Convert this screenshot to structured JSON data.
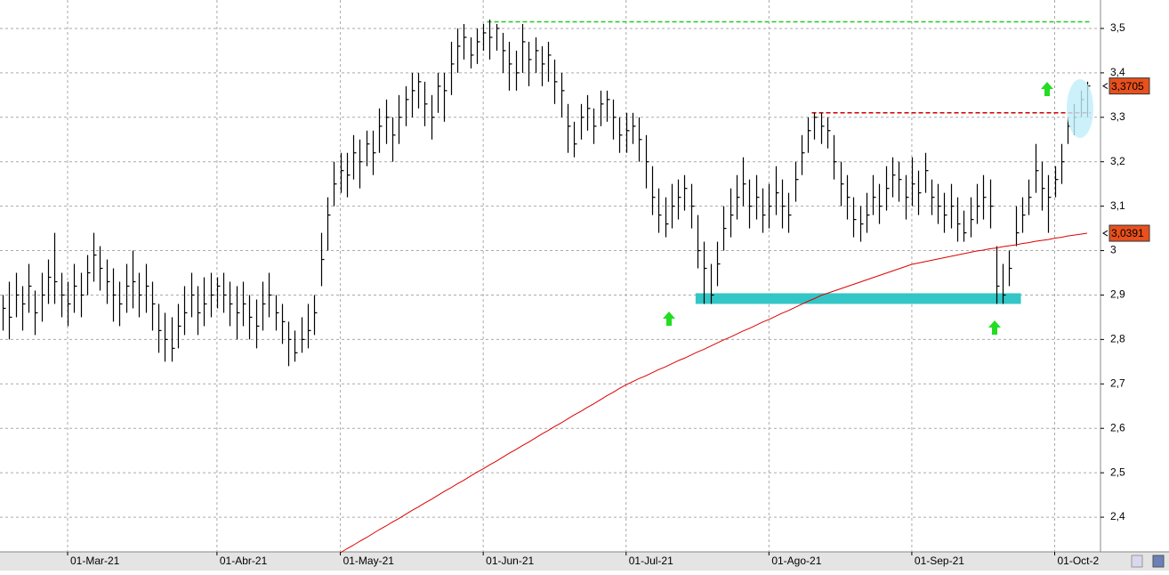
{
  "chart_data": {
    "type": "ohlc",
    "categories": [
      null,
      null,
      null,
      null,
      null,
      null,
      null,
      null,
      null,
      null,
      "01-Mar-21",
      null,
      null,
      null,
      null,
      null,
      null,
      null,
      null,
      null,
      null,
      null,
      null,
      null,
      null,
      null,
      null,
      null,
      null,
      null,
      null,
      null,
      null,
      "01-Abr-21",
      null,
      null,
      null,
      null,
      null,
      null,
      null,
      null,
      null,
      null,
      null,
      null,
      null,
      null,
      null,
      null,
      null,
      null,
      "01-May-21",
      null,
      null,
      null,
      null,
      null,
      null,
      null,
      null,
      null,
      null,
      null,
      null,
      null,
      null,
      null,
      null,
      null,
      null,
      null,
      null,
      null,
      "01-Jun-21",
      null,
      null,
      null,
      null,
      null,
      null,
      null,
      null,
      null,
      null,
      null,
      null,
      null,
      null,
      null,
      null,
      null,
      null,
      null,
      null,
      null,
      "01-Jul-21",
      null,
      null,
      null,
      null,
      null,
      null,
      null,
      null,
      null,
      null,
      null,
      null,
      null,
      null,
      null,
      null,
      null,
      null,
      null,
      null,
      null,
      "01-Ago-21",
      null,
      null,
      null,
      null,
      null,
      null,
      null,
      null,
      null,
      null,
      null,
      null,
      null,
      null,
      null,
      null,
      null,
      null,
      null,
      null,
      null,
      "01-Sep-21",
      null,
      null,
      null,
      null,
      null,
      null,
      null,
      null,
      null,
      null,
      null,
      null,
      null,
      null,
      null,
      null,
      null,
      null,
      null,
      null,
      null,
      "01-Oct-2",
      null,
      null,
      null,
      null,
      null
    ],
    "high": [
      2.9,
      2.93,
      2.95,
      2.92,
      2.97,
      2.91,
      2.95,
      2.98,
      3.04,
      2.95,
      2.93,
      2.97,
      2.95,
      2.99,
      3.04,
      3.01,
      2.98,
      2.96,
      2.93,
      2.97,
      3.0,
      2.95,
      2.97,
      2.93,
      2.88,
      2.86,
      2.85,
      2.88,
      2.92,
      2.95,
      2.92,
      2.94,
      2.95,
      2.94,
      2.95,
      2.93,
      2.92,
      2.93,
      2.9,
      2.89,
      2.93,
      2.95,
      2.9,
      2.88,
      2.84,
      2.82,
      2.85,
      2.88,
      2.9,
      3.04,
      3.12,
      3.2,
      3.22,
      3.22,
      3.26,
      3.25,
      3.27,
      3.27,
      3.32,
      3.34,
      3.3,
      3.35,
      3.37,
      3.4,
      3.4,
      3.38,
      3.35,
      3.4,
      3.4,
      3.47,
      3.5,
      3.51,
      3.48,
      3.5,
      3.51,
      3.52,
      3.51,
      3.49,
      3.47,
      3.45,
      3.51,
      3.47,
      3.48,
      3.46,
      3.47,
      3.43,
      3.4,
      3.33,
      3.29,
      3.33,
      3.35,
      3.32,
      3.36,
      3.36,
      3.34,
      3.3,
      3.31,
      3.31,
      3.3,
      3.26,
      3.19,
      3.14,
      3.12,
      3.15,
      3.16,
      3.17,
      3.15,
      3.08,
      3.02,
      2.97,
      3.02,
      3.1,
      3.14,
      3.17,
      3.21,
      3.16,
      3.17,
      3.14,
      3.15,
      3.19,
      3.16,
      3.13,
      3.2,
      3.26,
      3.3,
      3.31,
      3.31,
      3.3,
      3.26,
      3.2,
      3.17,
      3.12,
      3.1,
      3.13,
      3.17,
      3.15,
      3.19,
      3.21,
      3.2,
      3.17,
      3.21,
      3.18,
      3.22,
      3.16,
      3.15,
      3.13,
      3.15,
      3.12,
      3.09,
      3.12,
      3.15,
      3.17,
      3.16,
      3.01,
      2.97,
      3.0,
      3.1,
      3.12,
      3.16,
      3.24,
      3.2,
      3.17,
      3.19,
      3.24,
      3.3,
      3.33,
      3.36,
      3.38
    ],
    "low": [
      2.82,
      2.8,
      2.85,
      2.82,
      2.86,
      2.81,
      2.84,
      2.88,
      2.88,
      2.85,
      2.83,
      2.86,
      2.85,
      2.9,
      2.93,
      2.91,
      2.88,
      2.84,
      2.83,
      2.86,
      2.87,
      2.85,
      2.86,
      2.82,
      2.77,
      2.75,
      2.75,
      2.78,
      2.81,
      2.85,
      2.81,
      2.83,
      2.85,
      2.87,
      2.86,
      2.83,
      2.8,
      2.83,
      2.8,
      2.78,
      2.82,
      2.85,
      2.82,
      2.79,
      2.74,
      2.75,
      2.77,
      2.78,
      2.81,
      2.92,
      3.0,
      3.1,
      3.13,
      3.12,
      3.16,
      3.14,
      3.19,
      3.17,
      3.22,
      3.24,
      3.2,
      3.24,
      3.28,
      3.3,
      3.32,
      3.28,
      3.25,
      3.31,
      3.29,
      3.35,
      3.4,
      3.43,
      3.41,
      3.42,
      3.45,
      3.43,
      3.45,
      3.4,
      3.36,
      3.36,
      3.4,
      3.37,
      3.4,
      3.37,
      3.38,
      3.33,
      3.3,
      3.22,
      3.21,
      3.25,
      3.27,
      3.24,
      3.28,
      3.29,
      3.25,
      3.22,
      3.22,
      3.24,
      3.2,
      3.14,
      3.08,
      3.04,
      3.03,
      3.05,
      3.07,
      3.09,
      3.05,
      2.96,
      2.88,
      2.88,
      2.92,
      3.0,
      3.03,
      3.07,
      3.1,
      3.05,
      3.07,
      3.04,
      3.05,
      3.08,
      3.05,
      3.04,
      3.11,
      3.17,
      3.22,
      3.25,
      3.24,
      3.23,
      3.16,
      3.1,
      3.07,
      3.03,
      3.02,
      3.04,
      3.08,
      3.06,
      3.09,
      3.12,
      3.11,
      3.07,
      3.1,
      3.08,
      3.13,
      3.08,
      3.06,
      3.04,
      3.05,
      3.02,
      3.02,
      3.03,
      3.06,
      3.07,
      3.05,
      2.88,
      2.88,
      2.92,
      3.01,
      3.04,
      3.08,
      3.13,
      3.09,
      3.04,
      3.12,
      3.15,
      3.24,
      3.26,
      3.3,
      3.3
    ],
    "close": [
      2.87,
      2.85,
      2.9,
      2.88,
      2.92,
      2.86,
      2.9,
      2.94,
      2.93,
      2.9,
      2.88,
      2.92,
      2.9,
      2.95,
      2.99,
      2.96,
      2.93,
      2.9,
      2.88,
      2.92,
      2.93,
      2.9,
      2.92,
      2.88,
      2.82,
      2.8,
      2.78,
      2.83,
      2.86,
      2.9,
      2.86,
      2.88,
      2.9,
      2.92,
      2.9,
      2.88,
      2.86,
      2.88,
      2.85,
      2.83,
      2.88,
      2.9,
      2.86,
      2.84,
      2.8,
      2.77,
      2.8,
      2.82,
      2.86,
      2.98,
      3.08,
      3.15,
      3.18,
      3.17,
      3.22,
      3.2,
      3.24,
      3.22,
      3.28,
      3.3,
      3.26,
      3.3,
      3.34,
      3.36,
      3.38,
      3.33,
      3.3,
      3.37,
      3.36,
      3.42,
      3.46,
      3.48,
      3.44,
      3.47,
      3.49,
      3.48,
      3.5,
      3.45,
      3.42,
      3.4,
      3.47,
      3.43,
      3.45,
      3.42,
      3.44,
      3.38,
      3.36,
      3.28,
      3.24,
      3.3,
      3.32,
      3.28,
      3.33,
      3.34,
      3.3,
      3.26,
      3.27,
      3.28,
      3.25,
      3.2,
      3.12,
      3.08,
      3.06,
      3.1,
      3.12,
      3.14,
      3.1,
      3.0,
      2.96,
      2.9,
      2.97,
      3.05,
      3.08,
      3.12,
      3.15,
      3.1,
      3.12,
      3.08,
      3.1,
      3.13,
      3.1,
      3.08,
      3.16,
      3.22,
      3.27,
      3.3,
      3.28,
      3.27,
      3.2,
      3.15,
      3.12,
      3.07,
      3.06,
      3.08,
      3.12,
      3.1,
      3.14,
      3.17,
      3.16,
      3.12,
      3.15,
      3.13,
      3.18,
      3.12,
      3.1,
      3.08,
      3.1,
      3.06,
      3.04,
      3.07,
      3.1,
      3.12,
      3.1,
      2.92,
      2.9,
      2.96,
      3.04,
      3.08,
      3.12,
      3.18,
      3.14,
      3.12,
      3.16,
      3.2,
      3.28,
      3.3,
      3.34,
      3.3705
    ],
    "bar_color": "#000000",
    "moving_average": {
      "color": "#dd0000",
      "values": [
        null,
        null,
        null,
        null,
        null,
        null,
        null,
        null,
        null,
        null,
        null,
        null,
        null,
        null,
        null,
        null,
        null,
        null,
        null,
        null,
        null,
        null,
        null,
        null,
        null,
        null,
        null,
        null,
        null,
        null,
        null,
        null,
        null,
        null,
        null,
        null,
        null,
        null,
        null,
        null,
        null,
        null,
        null,
        null,
        null,
        null,
        null,
        null,
        null,
        null,
        null,
        null,
        2.32,
        2.329,
        2.337,
        2.346,
        2.354,
        2.363,
        2.372,
        2.38,
        2.389,
        2.397,
        2.406,
        2.415,
        2.423,
        2.432,
        2.44,
        2.449,
        2.458,
        2.466,
        2.475,
        2.483,
        2.492,
        2.501,
        2.509,
        2.518,
        2.526,
        2.535,
        2.544,
        2.552,
        2.561,
        2.569,
        2.578,
        2.587,
        2.595,
        2.604,
        2.612,
        2.621,
        2.63,
        2.638,
        2.647,
        2.655,
        2.664,
        2.673,
        2.681,
        2.69,
        2.698,
        2.705,
        2.712,
        2.718,
        2.725,
        2.732,
        2.738,
        2.745,
        2.752,
        2.758,
        2.765,
        2.772,
        2.778,
        2.785,
        2.792,
        2.799,
        2.805,
        2.812,
        2.819,
        2.825,
        2.832,
        2.839,
        2.845,
        2.852,
        2.859,
        2.865,
        2.872,
        2.879,
        2.886,
        2.892,
        2.899,
        2.904,
        2.909,
        2.914,
        2.919,
        2.924,
        2.929,
        2.934,
        2.939,
        2.944,
        2.949,
        2.954,
        2.959,
        2.964,
        2.969,
        2.972,
        2.975,
        2.978,
        2.981,
        2.984,
        2.987,
        2.99,
        2.993,
        2.996,
        2.999,
        3.001,
        3.004,
        3.006,
        3.009,
        3.011,
        3.013,
        3.016,
        3.018,
        3.021,
        3.023,
        3.025,
        3.028,
        3.03,
        3.033,
        3.035,
        3.037,
        3.0391
      ]
    },
    "price_tags": [
      {
        "value": 3.3705,
        "label": "3,3705",
        "color": "#e8501c"
      },
      {
        "value": 3.0391,
        "label": "3,0391",
        "color": "#e8501c"
      }
    ],
    "levels": [
      {
        "value": 3.515,
        "color": "#22cc22"
      },
      {
        "value": 3.31,
        "color": "#cc0000"
      }
    ],
    "zone": {
      "from": 2.88,
      "to": 2.9,
      "color": "#33c6c6"
    },
    "ylim": [
      2.322,
      3.564
    ],
    "yticks": [
      {
        "value": 2.4,
        "label": "2,4"
      },
      {
        "value": 2.5,
        "label": "2,5"
      },
      {
        "value": 2.6,
        "label": "2,6"
      },
      {
        "value": 2.7,
        "label": "2,7"
      },
      {
        "value": 2.8,
        "label": "2,8"
      },
      {
        "value": 2.9,
        "label": "2,9"
      },
      3,
      {
        "value": 3.1,
        "label": "3,1"
      },
      {
        "value": 3.2,
        "label": "3,2"
      },
      {
        "value": 3.3,
        "label": "3,3"
      },
      {
        "value": 3.4,
        "label": "3,4"
      },
      {
        "value": 3.5,
        "label": "3,5"
      }
    ],
    "grid": true
  }
}
